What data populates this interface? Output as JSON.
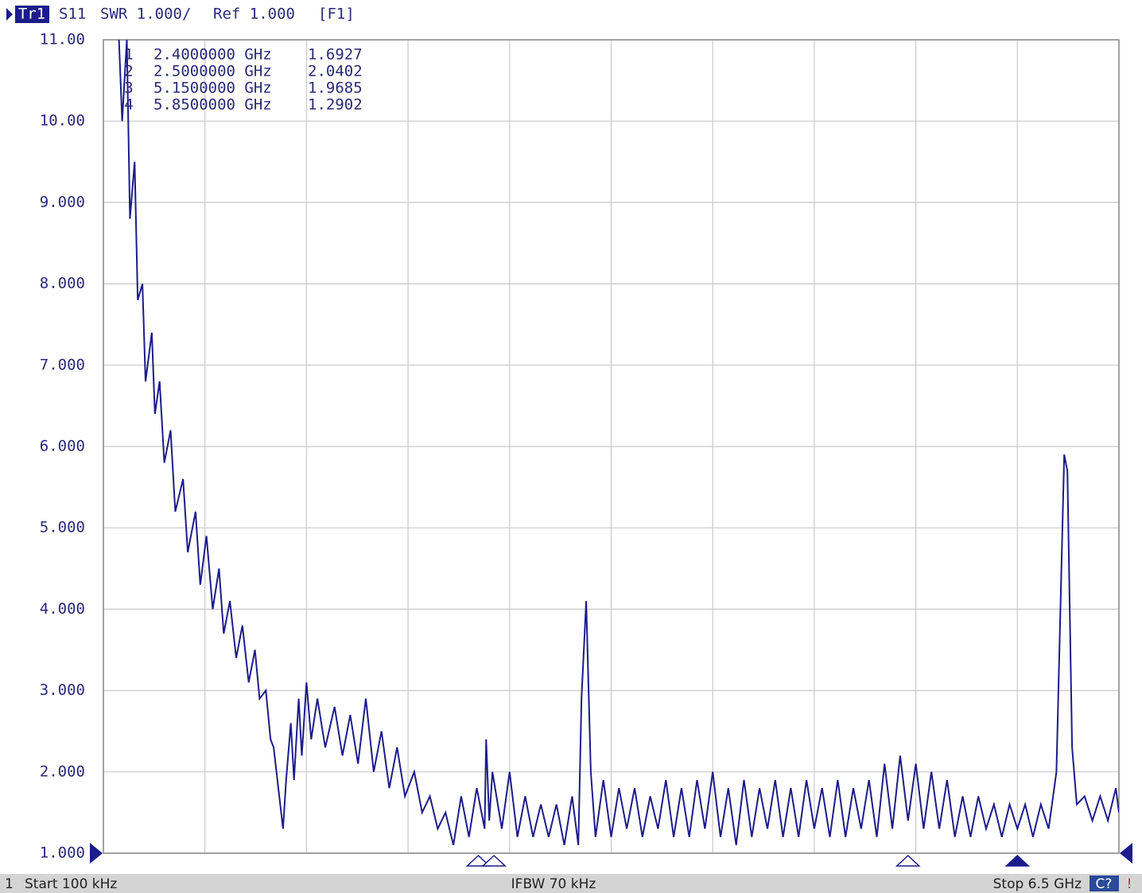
{
  "header": {
    "trace": "Tr1",
    "parameter": "S11",
    "format": "SWR 1.000/",
    "reference": "Ref 1.000",
    "function": "[F1]"
  },
  "footer": {
    "channel": "1",
    "start": "Start 100 kHz",
    "ifbw": "IFBW 70 kHz",
    "stop": "Stop 6.5 GHz",
    "status": "C?",
    "warning": "!"
  },
  "chart_data": {
    "type": "line",
    "color": "#1c1c8a",
    "grid": true,
    "xlim": [
      0.0001,
      6.5
    ],
    "xticks": [
      0.0001,
      0.65,
      1.3,
      1.95,
      2.6,
      3.25,
      3.9,
      4.55,
      5.2,
      5.85,
      6.5
    ],
    "ylim": [
      1,
      11
    ],
    "yticks": [
      {
        "value": 1,
        "label": "1.000"
      },
      {
        "value": 2,
        "label": "2.000"
      },
      {
        "value": 3,
        "label": "3.000"
      },
      {
        "value": 4,
        "label": "4.000"
      },
      {
        "value": 5,
        "label": "5.000"
      },
      {
        "value": 6,
        "label": "6.000"
      },
      {
        "value": 7,
        "label": "7.000"
      },
      {
        "value": 8,
        "label": "8.000"
      },
      {
        "value": 9,
        "label": "9.000"
      },
      {
        "value": 10,
        "label": "10.00"
      },
      {
        "value": 11,
        "label": "11.00"
      }
    ],
    "x": [
      0.1,
      0.12,
      0.15,
      0.17,
      0.2,
      0.22,
      0.25,
      0.27,
      0.31,
      0.33,
      0.36,
      0.39,
      0.43,
      0.46,
      0.51,
      0.54,
      0.59,
      0.62,
      0.66,
      0.7,
      0.74,
      0.77,
      0.81,
      0.85,
      0.89,
      0.93,
      0.97,
      1.0,
      1.04,
      1.07,
      1.09,
      1.12,
      1.15,
      1.17,
      1.2,
      1.22,
      1.25,
      1.27,
      1.3,
      1.33,
      1.37,
      1.42,
      1.48,
      1.53,
      1.58,
      1.63,
      1.68,
      1.73,
      1.78,
      1.83,
      1.88,
      1.93,
      1.99,
      2.04,
      2.09,
      2.14,
      2.19,
      2.24,
      2.29,
      2.34,
      2.39,
      2.44,
      2.45,
      2.47,
      2.49,
      2.55,
      2.6,
      2.65,
      2.7,
      2.75,
      2.8,
      2.85,
      2.9,
      2.95,
      3.0,
      3.04,
      3.06,
      3.09,
      3.12,
      3.15,
      3.2,
      3.25,
      3.3,
      3.35,
      3.4,
      3.45,
      3.5,
      3.55,
      3.6,
      3.65,
      3.7,
      3.75,
      3.8,
      3.85,
      3.9,
      3.95,
      4.0,
      4.05,
      4.1,
      4.15,
      4.2,
      4.25,
      4.3,
      4.35,
      4.4,
      4.45,
      4.5,
      4.55,
      4.6,
      4.65,
      4.7,
      4.75,
      4.8,
      4.85,
      4.9,
      4.95,
      5.0,
      5.05,
      5.1,
      5.15,
      5.2,
      5.25,
      5.3,
      5.35,
      5.4,
      5.45,
      5.5,
      5.55,
      5.6,
      5.65,
      5.7,
      5.75,
      5.8,
      5.85,
      5.9,
      5.95,
      6.0,
      6.05,
      6.1,
      6.15,
      6.17,
      6.2,
      6.23,
      6.28,
      6.33,
      6.38,
      6.43,
      6.48,
      6.5
    ],
    "values": [
      11,
      10,
      11,
      8.8,
      9.5,
      7.8,
      8.0,
      6.8,
      7.4,
      6.4,
      6.8,
      5.8,
      6.2,
      5.2,
      5.6,
      4.7,
      5.2,
      4.3,
      4.9,
      4.0,
      4.5,
      3.7,
      4.1,
      3.4,
      3.8,
      3.1,
      3.5,
      2.9,
      3.0,
      2.4,
      2.3,
      1.8,
      1.3,
      1.9,
      2.6,
      1.9,
      2.9,
      2.2,
      3.1,
      2.4,
      2.9,
      2.3,
      2.8,
      2.2,
      2.7,
      2.1,
      2.9,
      2.0,
      2.5,
      1.8,
      2.3,
      1.7,
      2.0,
      1.5,
      1.7,
      1.3,
      1.5,
      1.1,
      1.7,
      1.2,
      1.8,
      1.3,
      2.4,
      1.4,
      2.0,
      1.3,
      2.0,
      1.2,
      1.7,
      1.2,
      1.6,
      1.2,
      1.6,
      1.1,
      1.7,
      1.1,
      2.9,
      4.1,
      2.0,
      1.2,
      1.9,
      1.2,
      1.8,
      1.3,
      1.8,
      1.2,
      1.7,
      1.3,
      1.9,
      1.2,
      1.8,
      1.2,
      1.9,
      1.3,
      2.0,
      1.2,
      1.8,
      1.1,
      1.9,
      1.2,
      1.8,
      1.3,
      1.9,
      1.2,
      1.8,
      1.2,
      1.9,
      1.3,
      1.8,
      1.2,
      1.9,
      1.2,
      1.8,
      1.3,
      1.9,
      1.2,
      2.1,
      1.3,
      2.2,
      1.4,
      2.1,
      1.3,
      2.0,
      1.3,
      1.9,
      1.2,
      1.7,
      1.2,
      1.7,
      1.3,
      1.6,
      1.2,
      1.6,
      1.3,
      1.6,
      1.2,
      1.6,
      1.3,
      2.0,
      5.9,
      5.7,
      2.3,
      1.6,
      1.7,
      1.4,
      1.7,
      1.4,
      1.8,
      1.5
    ],
    "markers": [
      {
        "label": "1",
        "x": 2.4,
        "x_label": "2.4000000 GHz",
        "value": 1.6927,
        "active": false
      },
      {
        "label": "2",
        "x": 2.5,
        "x_label": "2.5000000 GHz",
        "value": 2.0402,
        "active": false
      },
      {
        "label": "3",
        "x": 5.15,
        "x_label": "5.1500000 GHz",
        "value": 1.9685,
        "active": false
      },
      {
        "label": "4",
        "x": 5.85,
        "x_label": "5.8500000 GHz",
        "value": 1.2902,
        "active": true
      }
    ]
  }
}
